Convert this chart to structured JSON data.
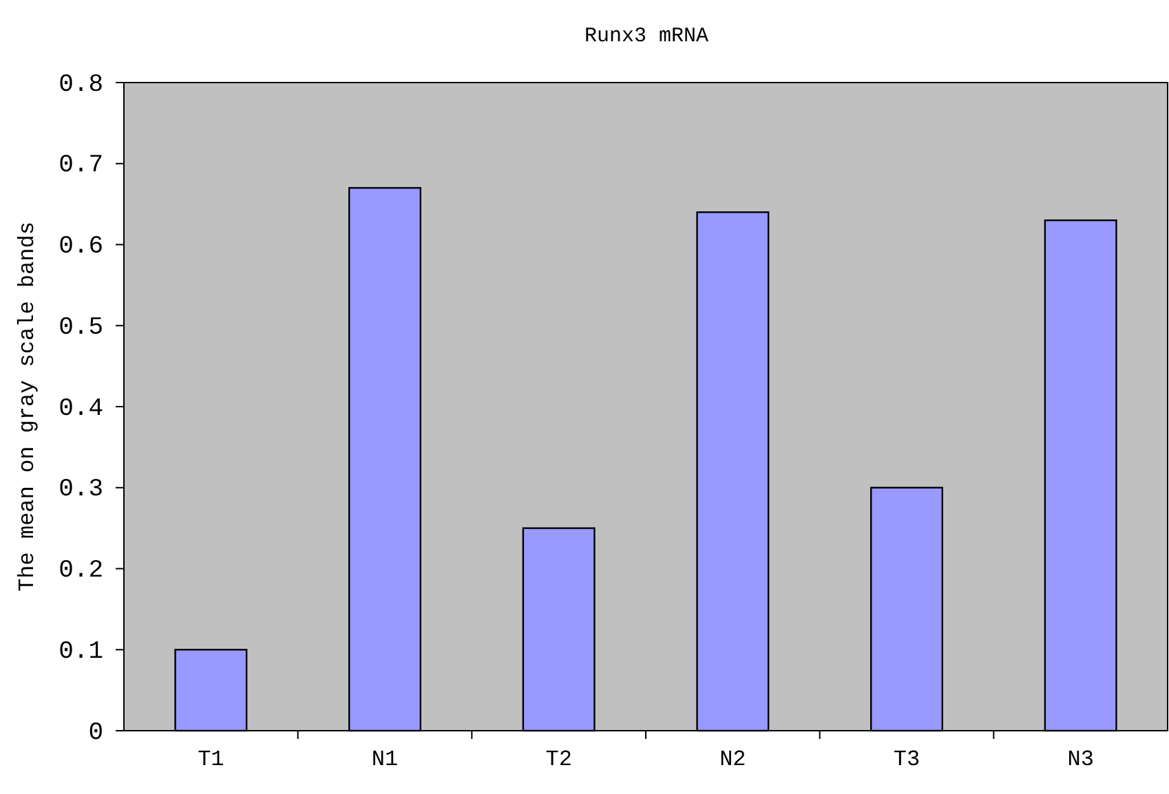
{
  "chart_data": {
    "type": "bar",
    "title": "Runx3 mRNA",
    "ylabel": "The mean on gray scale bands",
    "categories": [
      "T1",
      "N1",
      "T2",
      "N2",
      "T3",
      "N3"
    ],
    "values": [
      0.1,
      0.67,
      0.25,
      0.64,
      0.3,
      0.63
    ],
    "color": "#9999ff",
    "ylim": [
      0,
      0.8
    ],
    "yticks": [
      0,
      0.1,
      0.2,
      0.3,
      0.4,
      0.5,
      0.6,
      0.7,
      0.8
    ],
    "grid": false
  }
}
